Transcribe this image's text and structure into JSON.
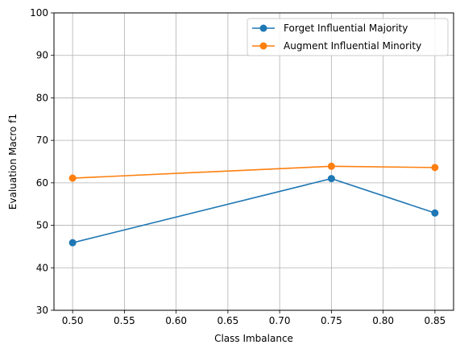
{
  "chart_data": {
    "type": "line",
    "xlabel": "Class Imbalance",
    "ylabel": "Evaluation Macro f1",
    "xlim": [
      0.482,
      0.868
    ],
    "ylim": [
      30,
      100
    ],
    "xticks": [
      0.5,
      0.55,
      0.6,
      0.65,
      0.7,
      0.75,
      0.8,
      0.85
    ],
    "xtick_labels": [
      "0.50",
      "0.55",
      "0.60",
      "0.65",
      "0.70",
      "0.75",
      "0.80",
      "0.85"
    ],
    "yticks": [
      30,
      40,
      50,
      60,
      70,
      80,
      90,
      100
    ],
    "ytick_labels": [
      "30",
      "40",
      "50",
      "60",
      "70",
      "80",
      "90",
      "100"
    ],
    "grid": true,
    "legend_position": "top-right",
    "series": [
      {
        "name": "Forget Influential Majority",
        "color": "#1f77b4",
        "marker": "circle",
        "x": [
          0.5,
          0.75,
          0.85
        ],
        "y": [
          45.9,
          61.0,
          52.9
        ]
      },
      {
        "name": "Augment Influential Minority",
        "color": "#ff7f0e",
        "marker": "circle",
        "x": [
          0.5,
          0.75,
          0.85
        ],
        "y": [
          61.1,
          63.9,
          63.6
        ]
      }
    ]
  }
}
